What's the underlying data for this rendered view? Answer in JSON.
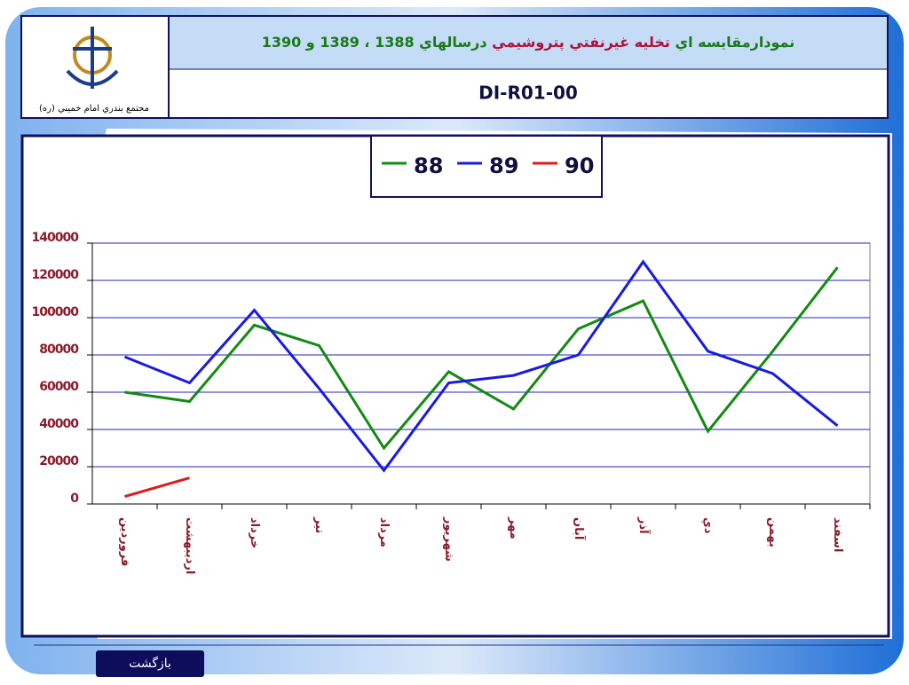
{
  "header": {
    "title_parts": [
      {
        "text": "نمودارمقايسه اي ",
        "color": "#1a7a1a"
      },
      {
        "text": "تخليه غيرنفتي پتروشيمي ",
        "color": "#b0103a"
      },
      {
        "text": "درسالهاي 1388 ، 1389 و 1390",
        "color": "#1a7a1a"
      }
    ],
    "code": "DI-R01-00",
    "logo_caption": "مجتمع بندري امام خميني (ره)"
  },
  "chart_data": {
    "type": "line",
    "categories": [
      "فروردين",
      "ارديبهشت",
      "خرداد",
      "تير",
      "مرداد",
      "شهريور",
      "مهر",
      "آبان",
      "آذر",
      "دي",
      "بهمن",
      "اسفند"
    ],
    "series": [
      {
        "name": "88",
        "color": "#138a13",
        "values": [
          60000,
          55000,
          96000,
          85000,
          30000,
          71000,
          51000,
          94000,
          109000,
          39000,
          82000,
          127000
        ]
      },
      {
        "name": "89",
        "color": "#1a1ae0",
        "values": [
          79000,
          65000,
          104000,
          62000,
          18000,
          65000,
          69000,
          80000,
          130000,
          82000,
          70000,
          42000
        ]
      },
      {
        "name": "90",
        "color": "#e01a1a",
        "values": [
          4000,
          14000,
          null,
          null,
          null,
          null,
          null,
          null,
          null,
          null,
          null,
          null
        ]
      }
    ],
    "ylim": [
      0,
      140000
    ],
    "yticks": [
      0,
      20000,
      40000,
      60000,
      80000,
      100000,
      120000,
      140000
    ],
    "grid": true
  },
  "footer": {
    "button": "بازگشت"
  }
}
